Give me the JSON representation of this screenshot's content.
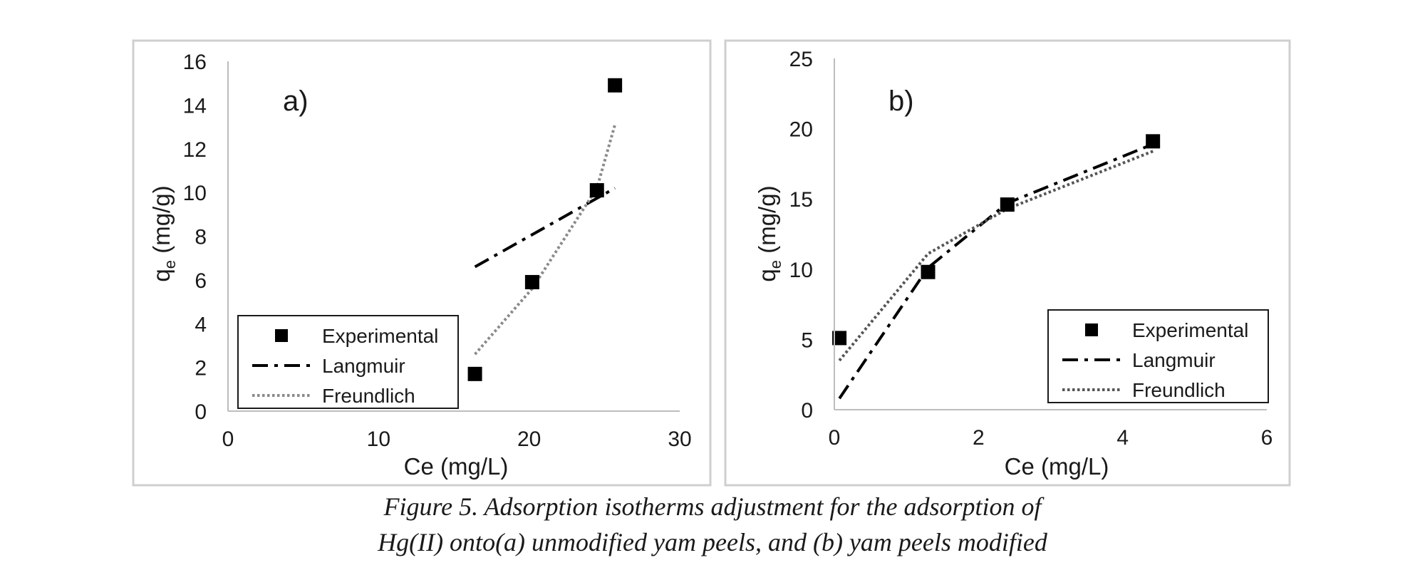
{
  "caption": {
    "line1": "Figure 5. Adsorption isotherms adjustment for the adsorption of",
    "line2": "Hg(II) onto(a) unmodified yam peels, and (b) yam peels modified"
  },
  "chart_data": [
    {
      "type": "scatter",
      "panel_label": "a)",
      "xlabel": "Ce (mg/L)",
      "ylabel": "qe (mg/g)",
      "xlim": [
        0,
        30
      ],
      "ylim": [
        0,
        16
      ],
      "xticks": [
        0,
        10,
        20,
        30
      ],
      "yticks": [
        0,
        2,
        4,
        6,
        8,
        10,
        12,
        14,
        16
      ],
      "grid": false,
      "legend_position": "bottom-left",
      "series": [
        {
          "name": "Experimental",
          "style": "markers",
          "color": "#000000",
          "x": [
            16.4,
            20.2,
            24.5,
            25.7
          ],
          "y": [
            1.7,
            5.9,
            10.1,
            14.9
          ]
        },
        {
          "name": "Langmuir",
          "style": "dash-dot",
          "color": "#000000",
          "x": [
            16.4,
            25.7
          ],
          "y": [
            6.6,
            10.2
          ]
        },
        {
          "name": "Freundlich",
          "style": "dotted",
          "color": "#8a8a8a",
          "x": [
            16.4,
            20.2,
            24.5,
            25.7
          ],
          "y": [
            2.6,
            5.6,
            10.2,
            13.1
          ]
        }
      ]
    },
    {
      "type": "scatter",
      "panel_label": "b)",
      "xlabel": "Ce (mg/L)",
      "ylabel": "qe (mg/g)",
      "xlim": [
        0,
        6
      ],
      "ylim": [
        0,
        25
      ],
      "xticks": [
        0,
        2,
        4,
        6
      ],
      "yticks": [
        0,
        5,
        10,
        15,
        20,
        25
      ],
      "grid": false,
      "legend_position": "bottom-right",
      "series": [
        {
          "name": "Experimental",
          "style": "markers",
          "color": "#000000",
          "x": [
            0.07,
            1.3,
            2.4,
            4.42
          ],
          "y": [
            5.1,
            9.8,
            14.6,
            19.1
          ]
        },
        {
          "name": "Langmuir",
          "style": "dash-dot",
          "color": "#000000",
          "x": [
            0.07,
            1.3,
            2.4,
            4.42
          ],
          "y": [
            0.8,
            10.1,
            14.7,
            18.9
          ]
        },
        {
          "name": "Freundlich",
          "style": "dotted",
          "color": "#555555",
          "x": [
            0.07,
            1.3,
            2.4,
            4.42
          ],
          "y": [
            3.5,
            11.1,
            14.3,
            18.4
          ]
        }
      ]
    }
  ]
}
